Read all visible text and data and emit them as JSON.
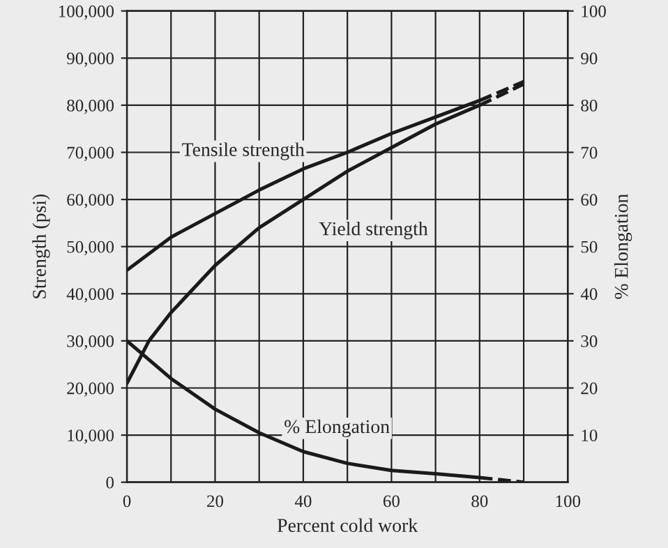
{
  "chart_data": {
    "type": "line",
    "xlabel": "Percent cold work",
    "ylabel": "Strength (psi)",
    "y2label": "% Elongation",
    "x": [
      0,
      10,
      20,
      30,
      40,
      50,
      60,
      70,
      80
    ],
    "series": [
      {
        "name": "Tensile strength",
        "color": "#1a1a1a",
        "values": [
          45000,
          52000,
          57000,
          62000,
          66500,
          70000,
          74000,
          77500,
          81000
        ]
      },
      {
        "name": "Yield strength",
        "color": "#1a1a1a",
        "x": [
          0,
          5,
          10,
          20,
          30,
          40,
          50,
          60,
          70,
          80
        ],
        "values": [
          21000,
          30000,
          36000,
          46000,
          54000,
          60000,
          66000,
          71000,
          76000,
          80000
        ]
      },
      {
        "name": "% Elongation",
        "color": "#1a1a1a",
        "axis": "y2",
        "values": [
          30,
          22,
          15.5,
          10.5,
          6.5,
          4,
          2.5,
          1.8,
          1
        ]
      },
      {
        "color": "#1a1a1a",
        "x": [
          80,
          90
        ],
        "values": [
          81000,
          85000
        ],
        "line_style": "dashed"
      },
      {
        "color": "#1a1a1a",
        "x": [
          80,
          90
        ],
        "values": [
          80000,
          84500
        ],
        "line_style": "dashed"
      },
      {
        "color": "#1a1a1a",
        "axis": "y2",
        "x": [
          80,
          90
        ],
        "values": [
          1,
          0
        ],
        "line_style": "dashed"
      }
    ],
    "xlim": [
      0,
      100
    ],
    "xticks": [
      0,
      20,
      40,
      60,
      80,
      100
    ],
    "ylim": [
      0,
      100000
    ],
    "yticks": [
      {
        "value": 0,
        "label": "0"
      },
      {
        "value": 10000,
        "label": "10,000"
      },
      {
        "value": 20000,
        "label": "20,000"
      },
      {
        "value": 30000,
        "label": "30,000"
      },
      {
        "value": 40000,
        "label": "40,000"
      },
      {
        "value": 50000,
        "label": "50,000"
      },
      {
        "value": 60000,
        "label": "60,000"
      },
      {
        "value": 70000,
        "label": "70,000"
      },
      {
        "value": 80000,
        "label": "80,000"
      },
      {
        "value": 90000,
        "label": "90,000"
      },
      {
        "value": 100000,
        "label": "100,000"
      }
    ],
    "y2lim": [
      0,
      100
    ],
    "y2ticks": [
      10,
      20,
      30,
      40,
      50,
      60,
      70,
      80,
      90,
      100
    ],
    "grid": true,
    "line_style": "solid",
    "legend": false
  }
}
